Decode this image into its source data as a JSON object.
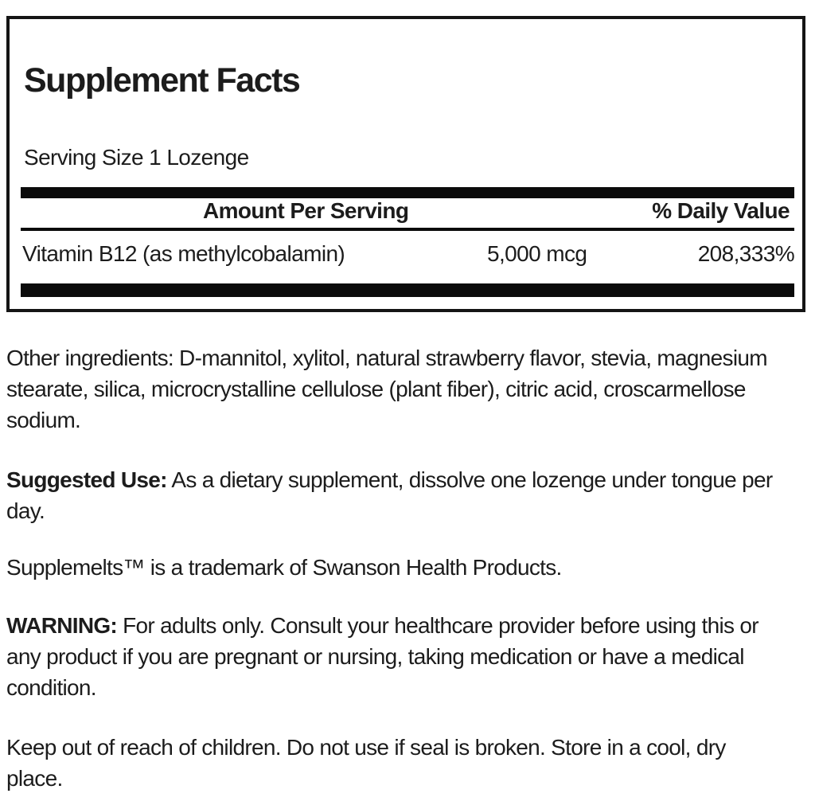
{
  "colors": {
    "background": "#ffffff",
    "ink": "#1c1c1c",
    "bar": "#0b0b0b",
    "border": "#151515"
  },
  "panel": {
    "title": "Supplement Facts",
    "serving_size": "Serving Size 1 Lozenge",
    "columns": {
      "amount": "Amount Per Serving",
      "daily_value": "% Daily Value"
    },
    "nutrients": [
      {
        "name": "Vitamin B12 (as methylcobalamin)",
        "amount": "5,000 mcg",
        "daily_value": "208,333%"
      }
    ]
  },
  "body": {
    "other_ingredients": {
      "line1": "Other ingredients: D-mannitol, xylitol, natural strawberry flavor, stevia, magnesium",
      "line2": "stearate, silica, microcrystalline cellulose (plant fiber), citric acid, croscarmellose",
      "line3": "sodium."
    },
    "suggested_use": {
      "lead": "Suggested Use:",
      "line1_rest": " As a dietary supplement, dissolve one lozenge under tongue per",
      "line2": "day."
    },
    "trademark": {
      "line1": "Supplemelts™ is a trademark of Swanson Health Products."
    },
    "warning": {
      "lead": "WARNING:",
      "line1_rest": " For adults only. Consult your healthcare provider before using this or",
      "line2": "any product if you are pregnant or nursing, taking medication or have a medical",
      "line3": "condition."
    },
    "storage": {
      "line1": "Keep out of reach of children. Do not use if seal is broken. Store in a cool, dry",
      "line2": "place."
    }
  }
}
